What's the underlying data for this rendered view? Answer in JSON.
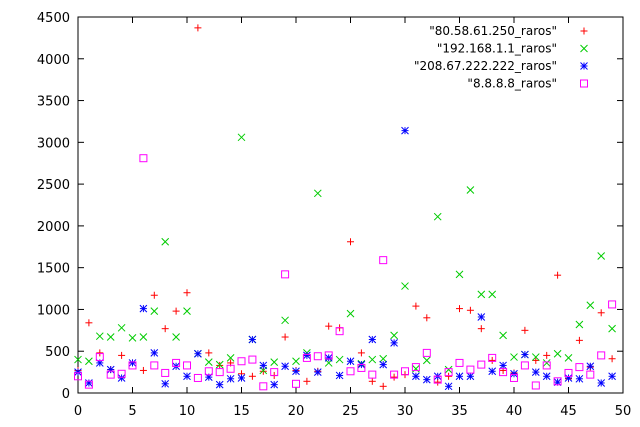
{
  "chart_data": {
    "type": "scatter",
    "title": "",
    "xlabel": "",
    "ylabel": "",
    "xlim": [
      0,
      50
    ],
    "ylim": [
      0,
      4500
    ],
    "x_ticks": [
      0,
      5,
      10,
      15,
      20,
      25,
      30,
      35,
      40,
      45,
      50
    ],
    "y_ticks": [
      0,
      500,
      1000,
      1500,
      2000,
      2500,
      3000,
      3500,
      4000,
      4500
    ],
    "grid": false,
    "legend_position": "top-right",
    "series": [
      {
        "name": "\"80.58.61.250_raros\"",
        "marker": "plus",
        "color": "#ff0000",
        "x": [
          0,
          1,
          2,
          3,
          4,
          5,
          6,
          7,
          8,
          9,
          10,
          11,
          12,
          13,
          14,
          15,
          16,
          17,
          18,
          19,
          20,
          21,
          22,
          23,
          24,
          25,
          26,
          27,
          28,
          29,
          30,
          31,
          32,
          33,
          34,
          35,
          36,
          37,
          38,
          39,
          40,
          41,
          42,
          43,
          44,
          45,
          46,
          47,
          48,
          49
        ],
        "y": [
          270,
          840,
          480,
          280,
          450,
          360,
          270,
          1170,
          770,
          980,
          1200,
          4370,
          480,
          330,
          360,
          230,
          200,
          260,
          210,
          670,
          270,
          140,
          260,
          800,
          780,
          1810,
          480,
          140,
          80,
          190,
          220,
          1040,
          900,
          130,
          200,
          1010,
          990,
          770,
          390,
          270,
          240,
          750,
          390,
          450,
          1410,
          170,
          630,
          310,
          960,
          410
        ]
      },
      {
        "name": "\"192.168.1.1_raros\"",
        "marker": "cross",
        "color": "#00cc00",
        "x": [
          0,
          1,
          2,
          3,
          4,
          5,
          6,
          7,
          8,
          9,
          10,
          11,
          12,
          13,
          14,
          15,
          16,
          17,
          18,
          19,
          20,
          21,
          22,
          23,
          24,
          25,
          26,
          27,
          28,
          29,
          30,
          31,
          32,
          33,
          34,
          35,
          36,
          37,
          38,
          39,
          40,
          41,
          42,
          43,
          44,
          45,
          46,
          47,
          48,
          49
        ],
        "y": [
          400,
          380,
          680,
          670,
          780,
          660,
          670,
          980,
          1810,
          670,
          980,
          470,
          370,
          340,
          420,
          3060,
          640,
          270,
          370,
          870,
          380,
          480,
          2390,
          360,
          400,
          950,
          350,
          400,
          410,
          690,
          1280,
          290,
          390,
          2110,
          280,
          1420,
          2430,
          1180,
          1180,
          690,
          430,
          460,
          430,
          360,
          470,
          420,
          820,
          1050,
          1640,
          770
        ]
      },
      {
        "name": "\"208.67.222.222_raros\"",
        "marker": "star",
        "color": "#0000ff",
        "x": [
          0,
          1,
          2,
          3,
          4,
          5,
          6,
          7,
          8,
          9,
          10,
          11,
          12,
          13,
          14,
          15,
          16,
          17,
          18,
          19,
          20,
          21,
          22,
          23,
          24,
          25,
          26,
          27,
          28,
          29,
          30,
          31,
          32,
          33,
          34,
          35,
          36,
          37,
          38,
          39,
          40,
          41,
          42,
          43,
          44,
          45,
          46,
          47,
          48,
          49
        ],
        "y": [
          250,
          120,
          360,
          280,
          180,
          360,
          1010,
          480,
          110,
          320,
          200,
          470,
          190,
          100,
          170,
          180,
          640,
          330,
          100,
          320,
          260,
          450,
          250,
          420,
          210,
          380,
          340,
          640,
          340,
          600,
          3140,
          200,
          160,
          200,
          80,
          200,
          200,
          910,
          260,
          330,
          230,
          460,
          250,
          200,
          130,
          180,
          170,
          320,
          120,
          200
        ]
      },
      {
        "name": "\"8.8.8.8_raros\"",
        "marker": "square",
        "color": "#ff00ff",
        "x": [
          0,
          1,
          2,
          3,
          4,
          5,
          6,
          7,
          8,
          9,
          10,
          11,
          12,
          13,
          14,
          15,
          16,
          17,
          18,
          19,
          20,
          21,
          22,
          23,
          24,
          25,
          26,
          27,
          28,
          29,
          30,
          31,
          32,
          33,
          34,
          35,
          36,
          37,
          38,
          39,
          40,
          41,
          42,
          43,
          44,
          45,
          46,
          47,
          48,
          49
        ],
        "y": [
          200,
          100,
          430,
          220,
          230,
          330,
          2810,
          330,
          240,
          360,
          330,
          180,
          260,
          250,
          290,
          380,
          400,
          80,
          250,
          1420,
          110,
          420,
          440,
          450,
          740,
          260,
          300,
          220,
          1590,
          220,
          260,
          310,
          480,
          160,
          250,
          360,
          280,
          340,
          420,
          250,
          180,
          330,
          90,
          330,
          140,
          240,
          310,
          220,
          450,
          1060
        ]
      }
    ]
  }
}
